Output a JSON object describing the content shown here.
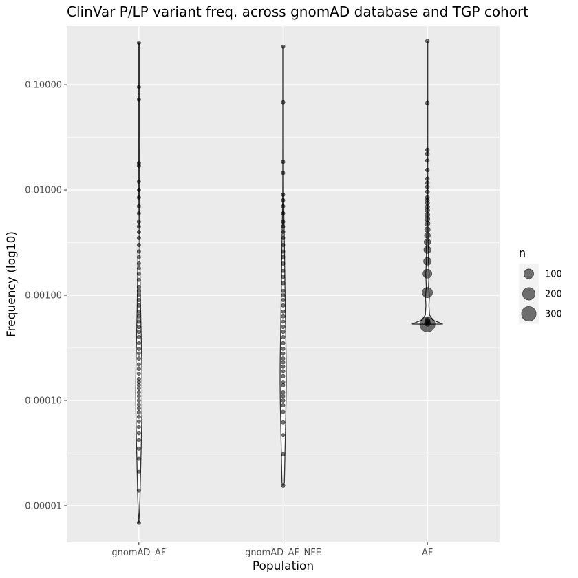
{
  "chart_data": {
    "type": "violin",
    "title": "ClinVar P/LP variant freq. across gnomAD database and TGP cohort",
    "xlabel": "Population",
    "ylabel": "Frequency (log10)",
    "y_scale": "log10",
    "ylim": [
      4.5e-06,
      0.36
    ],
    "y_ticks": [
      {
        "value": 0.1,
        "label": "0.10000"
      },
      {
        "value": 0.01,
        "label": "0.01000"
      },
      {
        "value": 0.001,
        "label": "0.00100"
      },
      {
        "value": 0.0001,
        "label": "0.00010"
      },
      {
        "value": 1e-05,
        "label": "0.00001"
      }
    ],
    "grid": true,
    "legend_position": "right",
    "categories": [
      "gnomAD_AF",
      "gnomAD_AF_NFE",
      "AF"
    ],
    "size_legend": {
      "title": "n",
      "entries": [
        100,
        200,
        300
      ]
    },
    "series": [
      {
        "category": "gnomAD_AF",
        "min": 6.9e-06,
        "max": 0.25,
        "density": [
          [
            6.9e-06,
            0.0
          ],
          [
            8.5e-06,
            0.8
          ],
          [
            1.2e-05,
            1.6
          ],
          [
            2e-05,
            2.4
          ],
          [
            4e-05,
            3.5
          ],
          [
            8e-05,
            4.4
          ],
          [
            0.00012,
            4.6
          ],
          [
            0.0002,
            4.3
          ],
          [
            0.0004,
            3.4
          ],
          [
            0.0008,
            2.4
          ],
          [
            0.0015,
            1.8
          ],
          [
            0.003,
            1.2
          ],
          [
            0.006,
            0.8
          ],
          [
            0.01,
            0.6
          ],
          [
            0.03,
            0.5
          ],
          [
            0.25,
            0.5
          ]
        ],
        "points": [
          6.9e-06,
          1.4e-05,
          2.1e-05,
          2.8e-05,
          3.5e-05,
          4.2e-05,
          4.9e-05,
          5.6e-05,
          6.3e-05,
          7e-05,
          7.7e-05,
          8.4e-05,
          9.1e-05,
          0.0001,
          0.00011,
          0.00012,
          0.00013,
          0.00014,
          0.00015,
          0.00016,
          0.00018,
          0.0002,
          0.00022,
          0.00025,
          0.00028,
          0.00031,
          0.00035,
          0.0004,
          0.00045,
          0.0005,
          0.00056,
          0.00063,
          0.0007,
          0.0008,
          0.0009,
          0.001,
          0.0011,
          0.0012,
          0.0014,
          0.0016,
          0.0018,
          0.002,
          0.0023,
          0.0026,
          0.003,
          0.0035,
          0.004,
          0.0045,
          0.005,
          0.006,
          0.007,
          0.0085,
          0.01,
          0.012,
          0.017,
          0.018,
          0.072,
          0.095,
          0.25
        ]
      },
      {
        "category": "gnomAD_AF_NFE",
        "min": 1.55e-05,
        "max": 0.23,
        "density": [
          [
            1.55e-05,
            0.0
          ],
          [
            1.65e-05,
            1.7
          ],
          [
            2e-05,
            2.0
          ],
          [
            3e-05,
            2.6
          ],
          [
            5e-05,
            3.3
          ],
          [
            0.0001,
            4.2
          ],
          [
            0.00015,
            4.5
          ],
          [
            0.00025,
            4.3
          ],
          [
            0.0004,
            3.8
          ],
          [
            0.0008,
            3.0
          ],
          [
            0.0015,
            2.4
          ],
          [
            0.003,
            1.8
          ],
          [
            0.006,
            1.0
          ],
          [
            0.01,
            0.6
          ],
          [
            0.03,
            0.5
          ],
          [
            0.23,
            0.5
          ]
        ],
        "points": [
          1.55e-05,
          3.1e-05,
          4.7e-05,
          6.2e-05,
          7.8e-05,
          9e-05,
          0.0001,
          0.00011,
          0.00012,
          0.00014,
          0.00015,
          0.00017,
          0.00019,
          0.00021,
          0.00023,
          0.00025,
          0.00028,
          0.00031,
          0.00035,
          0.0004,
          0.00045,
          0.0005,
          0.00056,
          0.00063,
          0.0007,
          0.0008,
          0.0009,
          0.001,
          0.0011,
          0.0013,
          0.0015,
          0.0017,
          0.002,
          0.0023,
          0.0026,
          0.003,
          0.0035,
          0.004,
          0.0045,
          0.005,
          0.006,
          0.007,
          0.008,
          0.009,
          0.0145,
          0.0185,
          0.068,
          0.23
        ]
      },
      {
        "category": "AF",
        "min": 0.00053,
        "max": 0.26,
        "density": [
          [
            0.00053,
            0.0
          ],
          [
            0.000532,
            22.0
          ],
          [
            0.00055,
            17.0
          ],
          [
            0.00058,
            8.0
          ],
          [
            0.00065,
            3.0
          ],
          [
            0.0008,
            2.2
          ],
          [
            0.00095,
            2.8
          ],
          [
            0.00105,
            2.4
          ],
          [
            0.0012,
            1.6
          ],
          [
            0.0016,
            2.4
          ],
          [
            0.0021,
            1.4
          ],
          [
            0.0027,
            1.6
          ],
          [
            0.0035,
            0.9
          ],
          [
            0.005,
            0.6
          ],
          [
            0.01,
            0.5
          ],
          [
            0.26,
            0.5
          ]
        ],
        "points": [
          {
            "y": 0.00053,
            "n": 340
          },
          {
            "y": 0.00054,
            "n": 20
          },
          {
            "y": 0.00056,
            "n": 15
          },
          {
            "y": 0.00058,
            "n": 10
          },
          {
            "y": 0.00106,
            "n": 120
          },
          {
            "y": 0.0016,
            "n": 80
          },
          {
            "y": 0.0021,
            "n": 50
          },
          {
            "y": 0.0027,
            "n": 40
          },
          {
            "y": 0.0032,
            "n": 30
          },
          {
            "y": 0.0037,
            "n": 20
          },
          {
            "y": 0.0042,
            "n": 15
          },
          {
            "y": 0.0048,
            "n": 12
          },
          {
            "y": 0.0053,
            "n": 10
          },
          {
            "y": 0.0058,
            "n": 8
          },
          {
            "y": 0.0064,
            "n": 6
          },
          {
            "y": 0.0069,
            "n": 5
          },
          {
            "y": 0.0075,
            "n": 4
          },
          {
            "y": 0.008,
            "n": 3
          },
          {
            "y": 0.0085,
            "n": 3
          },
          {
            "y": 0.0096,
            "n": 3
          },
          {
            "y": 0.0107,
            "n": 2
          },
          {
            "y": 0.0117,
            "n": 2
          },
          {
            "y": 0.0128,
            "n": 2
          },
          {
            "y": 0.0155,
            "n": 2
          },
          {
            "y": 0.019,
            "n": 2
          },
          {
            "y": 0.022,
            "n": 2
          },
          {
            "y": 0.024,
            "n": 2
          },
          {
            "y": 0.067,
            "n": 2
          },
          {
            "y": 0.26,
            "n": 2
          }
        ]
      }
    ]
  }
}
